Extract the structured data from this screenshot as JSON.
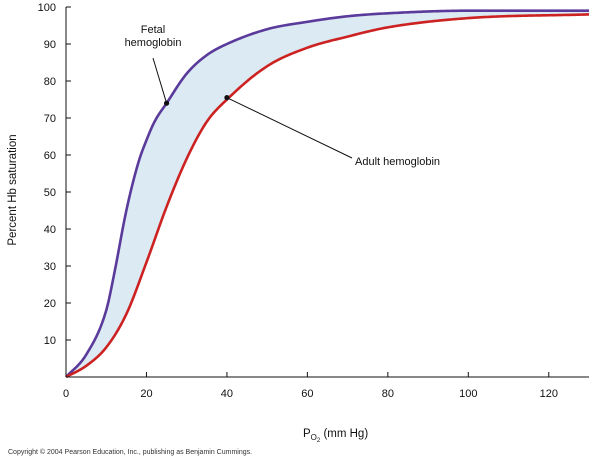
{
  "chart_data": {
    "type": "line",
    "ylabel": "Percent Hb saturation",
    "xlabel": {
      "main": "P",
      "subscript": "O",
      "sub_subscript": "2",
      "unit": " (mm Hg)"
    },
    "xlim": [
      0,
      130
    ],
    "ylim": [
      0,
      100
    ],
    "xticks": [
      0,
      20,
      40,
      60,
      80,
      100,
      120
    ],
    "yticks": [
      10,
      20,
      30,
      40,
      50,
      60,
      70,
      80,
      90,
      100
    ],
    "grid": false,
    "fill_between_series": {
      "color": "#dceaf3"
    },
    "series": [
      {
        "name": "Fetal hemoglobin",
        "color": "#5a3a9a",
        "x": [
          0,
          5,
          10,
          12,
          15,
          18,
          20,
          22,
          25,
          30,
          35,
          40,
          50,
          60,
          70,
          80,
          100,
          130
        ],
        "y": [
          0,
          6,
          18,
          28,
          45,
          58,
          64,
          69,
          74,
          82,
          87,
          90,
          94,
          96,
          97.5,
          98.3,
          99,
          99
        ]
      },
      {
        "name": "Adult hemoglobin",
        "color": "#cc2222",
        "x": [
          0,
          5,
          10,
          15,
          20,
          25,
          30,
          35,
          40,
          50,
          60,
          70,
          80,
          100,
          130
        ],
        "y": [
          0,
          3,
          8,
          17,
          31,
          46,
          59,
          69,
          75,
          84,
          89,
          92,
          94.5,
          97,
          98
        ]
      }
    ],
    "annotations": [
      {
        "label_lines": [
          "Fetal",
          "hemoglobin"
        ],
        "series": 0,
        "x": 25,
        "y": 74
      },
      {
        "label_lines": [
          "Adult hemoglobin"
        ],
        "series": 1,
        "x": 40,
        "y": 75.5
      }
    ]
  },
  "copyright": "Copyright © 2004 Pearson Education, Inc., publishing as Benjamin Cummings."
}
